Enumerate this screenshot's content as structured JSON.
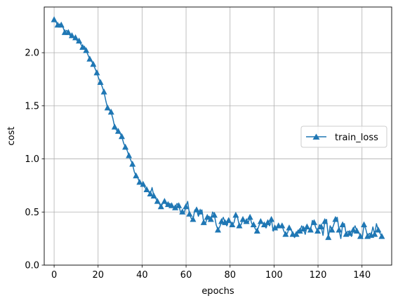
{
  "chart_data": {
    "type": "line",
    "title": "",
    "xlabel": "epochs",
    "ylabel": "cost",
    "xlim": [
      -4.5,
      153.5
    ],
    "ylim": [
      0.0,
      2.43
    ],
    "xticks": [
      0,
      20,
      40,
      60,
      80,
      100,
      120,
      140
    ],
    "yticks": [
      0.0,
      0.5,
      1.0,
      1.5,
      2.0
    ],
    "xtick_labels": [
      "0",
      "20",
      "40",
      "60",
      "80",
      "100",
      "120",
      "140"
    ],
    "ytick_labels": [
      "0.0",
      "0.5",
      "1.0",
      "1.5",
      "2.0"
    ],
    "grid": true,
    "legend": {
      "position": "center-right"
    },
    "series": [
      {
        "name": "train_loss",
        "color": "#1f77b4",
        "marker": "triangle-up",
        "marker_every": 2,
        "values": [
          2.31,
          2.29,
          2.26,
          2.27,
          2.26,
          2.24,
          2.19,
          2.21,
          2.19,
          2.16,
          2.16,
          2.14,
          2.14,
          2.11,
          2.11,
          2.08,
          2.05,
          2.06,
          2.02,
          1.98,
          1.94,
          1.92,
          1.89,
          1.85,
          1.81,
          1.76,
          1.72,
          1.68,
          1.63,
          1.55,
          1.48,
          1.46,
          1.44,
          1.38,
          1.3,
          1.27,
          1.26,
          1.24,
          1.21,
          1.15,
          1.11,
          1.08,
          1.03,
          0.99,
          0.95,
          0.88,
          0.84,
          0.82,
          0.78,
          0.77,
          0.76,
          0.73,
          0.71,
          0.69,
          0.67,
          0.73,
          0.65,
          0.63,
          0.6,
          0.58,
          0.55,
          0.58,
          0.6,
          0.57,
          0.57,
          0.58,
          0.56,
          0.55,
          0.54,
          0.58,
          0.56,
          0.5,
          0.5,
          0.49,
          0.55,
          0.6,
          0.48,
          0.44,
          0.43,
          0.52,
          0.52,
          0.46,
          0.5,
          0.52,
          0.4,
          0.39,
          0.45,
          0.46,
          0.43,
          0.5,
          0.47,
          0.38,
          0.33,
          0.36,
          0.41,
          0.45,
          0.4,
          0.37,
          0.42,
          0.4,
          0.38,
          0.4,
          0.47,
          0.45,
          0.37,
          0.38,
          0.43,
          0.4,
          0.41,
          0.4,
          0.45,
          0.39,
          0.38,
          0.34,
          0.32,
          0.37,
          0.41,
          0.4,
          0.38,
          0.35,
          0.4,
          0.37,
          0.43,
          0.32,
          0.35,
          0.34,
          0.37,
          0.36,
          0.37,
          0.32,
          0.29,
          0.3,
          0.35,
          0.34,
          0.29,
          0.26,
          0.29,
          0.33,
          0.32,
          0.37,
          0.34,
          0.29,
          0.36,
          0.34,
          0.33,
          0.42,
          0.4,
          0.35,
          0.32,
          0.38,
          0.36,
          0.28,
          0.41,
          0.43,
          0.26,
          0.37,
          0.33,
          0.38,
          0.43,
          0.45,
          0.33,
          0.25,
          0.38,
          0.39,
          0.29,
          0.32,
          0.3,
          0.27,
          0.33,
          0.37,
          0.32,
          0.31,
          0.27,
          0.25,
          0.38,
          0.34,
          0.27,
          0.3,
          0.28,
          0.36,
          0.29,
          0.39,
          0.33,
          0.3,
          0.27
        ]
      }
    ]
  }
}
